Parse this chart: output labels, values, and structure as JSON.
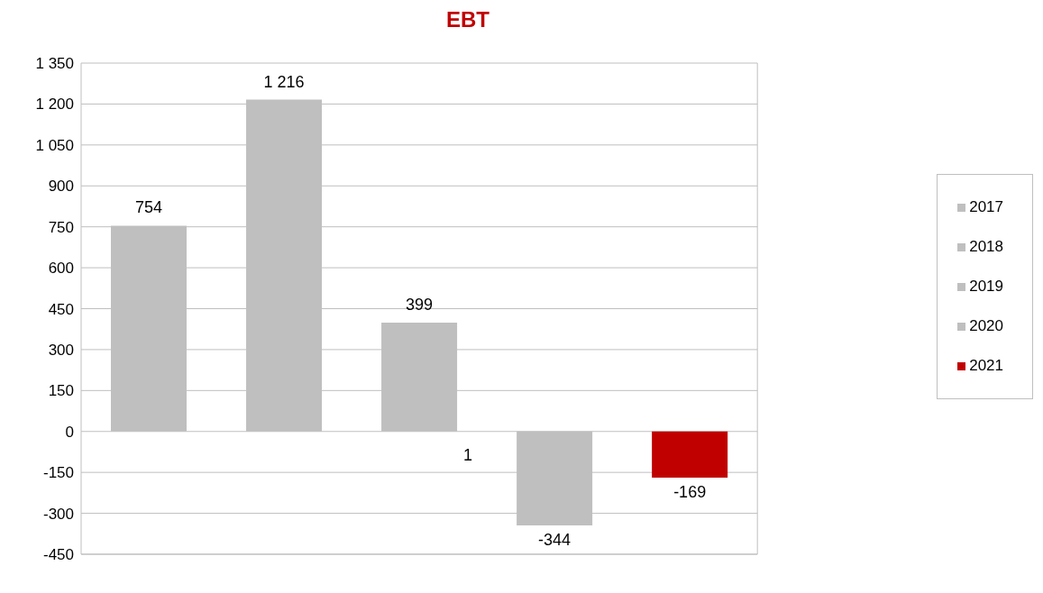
{
  "chart_data": {
    "type": "bar",
    "title": "EBT",
    "categories": [
      null,
      null,
      null,
      null,
      null
    ],
    "stacked": true,
    "series": [
      {
        "name": "2017",
        "color": "#bfbfbf",
        "values": [
          754,
          null,
          null,
          null,
          null
        ],
        "value_labels": [
          "754",
          null,
          null,
          null,
          null
        ]
      },
      {
        "name": "2018",
        "color": "#bfbfbf",
        "values": [
          null,
          1216,
          null,
          null,
          null
        ],
        "value_labels": [
          null,
          "1 216",
          null,
          null,
          null
        ]
      },
      {
        "name": "2019",
        "color": "#bfbfbf",
        "values": [
          null,
          null,
          399,
          null,
          null
        ],
        "value_labels": [
          null,
          null,
          "399",
          null,
          null
        ]
      },
      {
        "name": "2020",
        "color": "#bfbfbf",
        "values": [
          null,
          null,
          null,
          -344,
          null
        ],
        "value_labels": [
          null,
          null,
          null,
          "-344",
          null
        ]
      },
      {
        "name": "2021",
        "color": "#c00000",
        "values": [
          null,
          null,
          null,
          null,
          -169
        ],
        "value_labels": [
          null,
          null,
          null,
          null,
          "-169"
        ]
      }
    ],
    "ylim": [
      -450,
      1350
    ],
    "yticks": [
      -450,
      -300,
      -150,
      0,
      150,
      300,
      450,
      600,
      750,
      900,
      {
        "value": 1050,
        "label": "1 050"
      },
      {
        "value": 1200,
        "label": "1 200"
      },
      {
        "value": 1350,
        "label": "1 350"
      }
    ],
    "grid": "y",
    "legend": "right",
    "annotations": [
      "1"
    ]
  }
}
